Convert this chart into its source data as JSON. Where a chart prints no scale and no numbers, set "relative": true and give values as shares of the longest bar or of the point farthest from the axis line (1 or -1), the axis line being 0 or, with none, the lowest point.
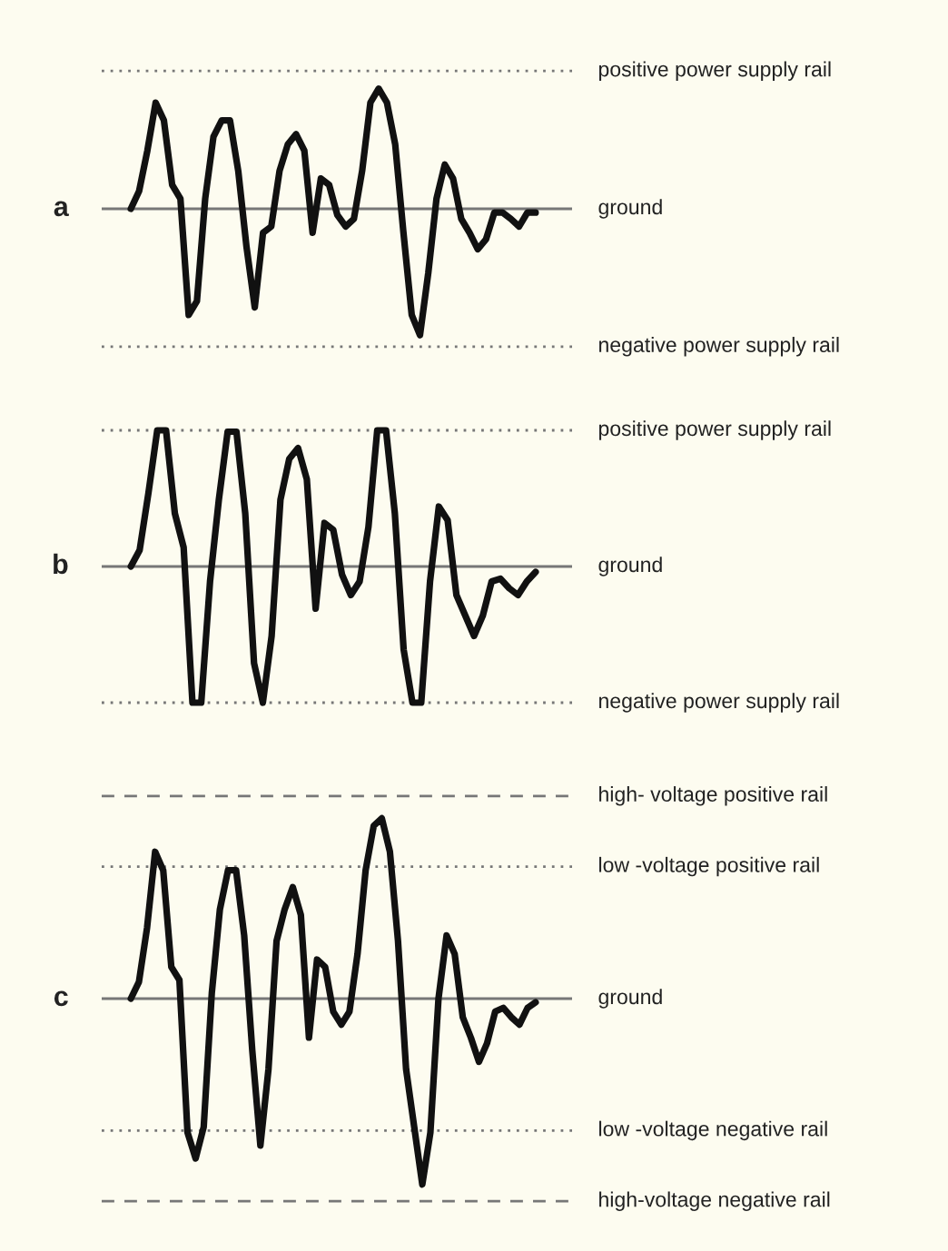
{
  "chart_data": [
    {
      "type": "line",
      "title": "a",
      "relative": true,
      "marker": "none",
      "line_style": "solid",
      "categories": [
        null,
        null,
        null,
        null,
        null,
        null,
        null,
        null,
        null,
        null,
        null,
        null,
        null,
        null,
        null,
        null,
        null,
        null,
        null,
        null,
        null,
        null,
        null,
        null,
        null,
        null,
        null,
        null,
        null,
        null,
        null,
        null,
        null,
        null,
        null,
        null,
        null,
        null,
        null,
        null,
        null,
        null,
        null,
        null,
        null,
        null,
        null,
        null,
        null,
        null
      ],
      "series": [
        {
          "color": "#111111",
          "values": [
            0,
            0.14,
            0.46,
            0.84,
            0.7,
            0.19,
            0.08,
            -0.84,
            -0.73,
            0.08,
            0.57,
            0.7,
            0.7,
            0.3,
            -0.3,
            -0.78,
            -0.19,
            -0.14,
            0.3,
            0.51,
            0.59,
            0.46,
            -0.19,
            0.24,
            0.19,
            -0.05,
            -0.14,
            -0.08,
            0.3,
            0.84,
            0.95,
            0.84,
            0.51,
            -0.19,
            -0.84,
            -1.0,
            -0.51,
            0.08,
            0.35,
            0.24,
            -0.08,
            -0.19,
            -0.32,
            -0.24,
            -0.03,
            -0.03,
            -0.08,
            -0.14,
            -0.03,
            -0.03
          ]
        }
      ],
      "ref_lines": [
        {
          "axis": "y",
          "value": 1.09,
          "label": "positive power supply rail",
          "line_style": "dotted",
          "color": "#777777"
        },
        {
          "axis": "y",
          "value": 0,
          "label": "ground",
          "line_style": "solid",
          "color": "#777777"
        },
        {
          "axis": "y",
          "value": -1.09,
          "label": "negative power supply rail",
          "line_style": "dotted",
          "color": "#777777"
        }
      ]
    },
    {
      "type": "line",
      "title": "b",
      "relative": true,
      "marker": "none",
      "line_style": "solid",
      "categories": [
        null,
        null,
        null,
        null,
        null,
        null,
        null,
        null,
        null,
        null,
        null,
        null,
        null,
        null,
        null,
        null,
        null,
        null,
        null,
        null,
        null,
        null,
        null,
        null,
        null,
        null,
        null,
        null,
        null,
        null,
        null,
        null,
        null,
        null,
        null,
        null,
        null,
        null,
        null,
        null,
        null,
        null,
        null,
        null,
        null,
        null,
        null
      ],
      "series": [
        {
          "color": "#111111",
          "values": [
            0,
            0.12,
            0.54,
            1.0,
            1.0,
            0.39,
            0.14,
            -1.0,
            -1.0,
            -0.11,
            0.49,
            0.99,
            0.99,
            0.39,
            -0.71,
            -1.0,
            -0.51,
            0.49,
            0.79,
            0.87,
            0.64,
            -0.31,
            0.32,
            0.27,
            -0.06,
            -0.21,
            -0.11,
            0.29,
            1.0,
            1.0,
            0.39,
            -0.61,
            -1.0,
            -1.0,
            -0.11,
            0.44,
            0.34,
            -0.21,
            -0.36,
            -0.51,
            -0.36,
            -0.11,
            -0.09,
            -0.16,
            -0.21,
            -0.11,
            -0.04
          ]
        }
      ],
      "ref_lines": [
        {
          "axis": "y",
          "value": 1.0,
          "label": "positive power supply rail",
          "line_style": "dotted",
          "color": "#777777"
        },
        {
          "axis": "y",
          "value": 0,
          "label": "ground",
          "line_style": "solid",
          "color": "#777777"
        },
        {
          "axis": "y",
          "value": -1.0,
          "label": "negative power supply rail",
          "line_style": "dotted",
          "color": "#777777"
        }
      ]
    },
    {
      "type": "line",
      "title": "c",
      "relative": true,
      "marker": "none",
      "line_style": "solid",
      "categories": [
        null,
        null,
        null,
        null,
        null,
        null,
        null,
        null,
        null,
        null,
        null,
        null,
        null,
        null,
        null,
        null,
        null,
        null,
        null,
        null,
        null,
        null,
        null,
        null,
        null,
        null,
        null,
        null,
        null,
        null,
        null,
        null,
        null,
        null,
        null,
        null,
        null,
        null,
        null,
        null,
        null,
        null,
        null,
        null,
        null,
        null,
        null,
        null,
        null,
        null,
        null
      ],
      "series": [
        {
          "color": "#111111",
          "values": [
            0,
            0.09,
            0.38,
            0.79,
            0.69,
            0.17,
            0.1,
            -0.72,
            -0.86,
            -0.69,
            0.03,
            0.48,
            0.69,
            0.69,
            0.34,
            -0.28,
            -0.79,
            -0.38,
            0.31,
            0.48,
            0.6,
            0.45,
            -0.21,
            0.21,
            0.17,
            -0.07,
            -0.14,
            -0.07,
            0.24,
            0.69,
            0.93,
            0.97,
            0.79,
            0.31,
            -0.38,
            -0.69,
            -1.0,
            -0.72,
            0.0,
            0.34,
            0.24,
            -0.1,
            -0.21,
            -0.34,
            -0.24,
            -0.07,
            -0.05,
            -0.1,
            -0.14,
            -0.05,
            -0.02
          ]
        }
      ],
      "ref_lines": [
        {
          "axis": "y",
          "value": 1.09,
          "label": "high- voltage positive rail",
          "line_style": "dashed",
          "color": "#777777"
        },
        {
          "axis": "y",
          "value": 0.71,
          "label": "low -voltage positive rail",
          "line_style": "dotted",
          "color": "#777777"
        },
        {
          "axis": "y",
          "value": 0,
          "label": "ground",
          "line_style": "solid",
          "color": "#777777"
        },
        {
          "axis": "y",
          "value": -0.71,
          "label": "low -voltage negative rail",
          "line_style": "dotted",
          "color": "#777777"
        },
        {
          "axis": "y",
          "value": -1.09,
          "label": "high-voltage negative rail",
          "line_style": "dashed",
          "color": "#777777"
        }
      ]
    }
  ]
}
